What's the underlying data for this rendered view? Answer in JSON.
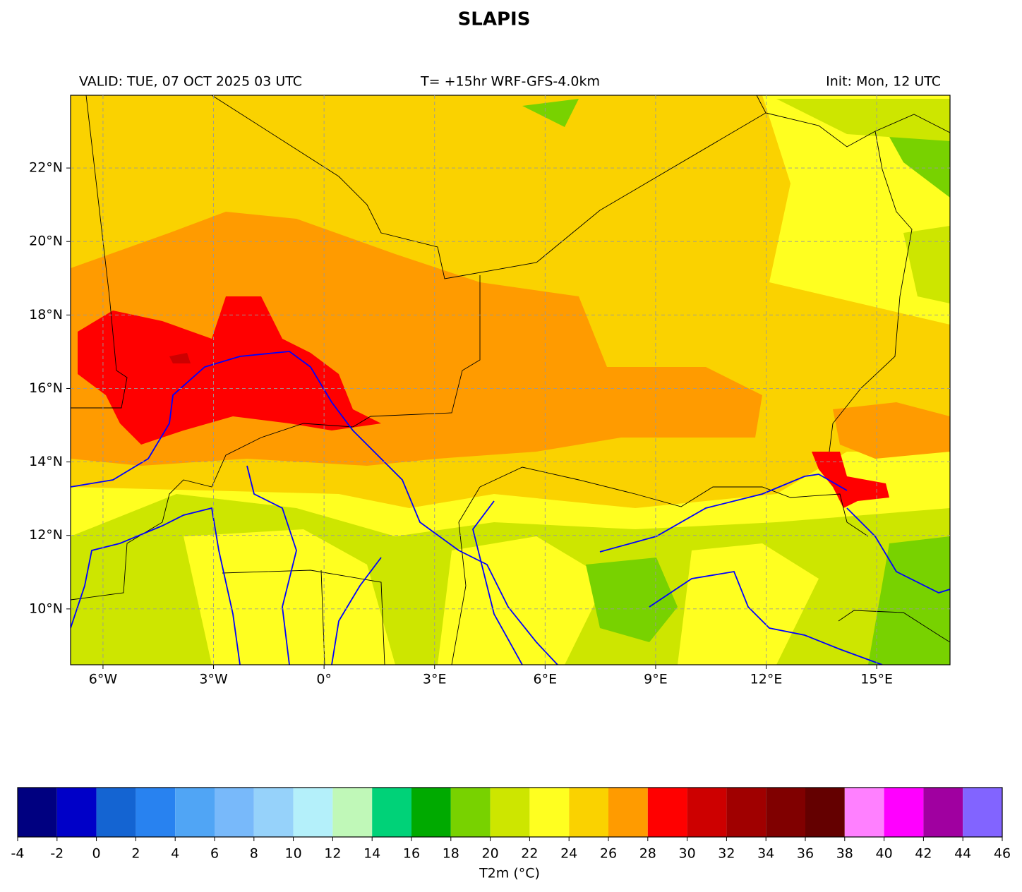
{
  "title": "SLAPIS",
  "header": {
    "left": "VALID: TUE, 07 OCT 2025 03 UTC",
    "center": "T= +15hr WRF-GFS-4.0km",
    "right": "Init: Mon, 12 UTC"
  },
  "map": {
    "xlim": [
      -6.88,
      16.99
    ],
    "ylim": [
      8.48,
      23.98
    ],
    "grid": true,
    "xticks": [
      {
        "value": -6,
        "label": "6°W"
      },
      {
        "value": -3,
        "label": "3°W"
      },
      {
        "value": 0,
        "label": "0°"
      },
      {
        "value": 3,
        "label": "3°E"
      },
      {
        "value": 6,
        "label": "6°E"
      },
      {
        "value": 9,
        "label": "9°E"
      },
      {
        "value": 12,
        "label": "12°E"
      },
      {
        "value": 15,
        "label": "15°E"
      }
    ],
    "yticks": [
      {
        "value": 10,
        "label": "10°N"
      },
      {
        "value": 12,
        "label": "12°N"
      },
      {
        "value": 14,
        "label": "14°N"
      },
      {
        "value": 16,
        "label": "16°N"
      },
      {
        "value": 18,
        "label": "18°N"
      },
      {
        "value": 20,
        "label": "20°N"
      },
      {
        "value": 22,
        "label": "22°N"
      }
    ]
  },
  "colorbar": {
    "label": "T2m (°C)",
    "bounds": [
      -4,
      -2,
      0,
      2,
      4,
      6,
      8,
      10,
      12,
      14,
      16,
      18,
      20,
      22,
      24,
      26,
      28,
      30,
      32,
      34,
      36,
      38,
      40,
      42,
      44,
      46
    ],
    "colors": [
      "#000080",
      "#0000c8",
      "#1464d2",
      "#2882f0",
      "#50a5f5",
      "#78b9fa",
      "#96d2fa",
      "#b4f0fa",
      "#c0f8b8",
      "#00d278",
      "#00aa00",
      "#78d200",
      "#cde600",
      "#ffff20",
      "#fad200",
      "#ff9b00",
      "#ff0000",
      "#cd0000",
      "#a00000",
      "#800000",
      "#640000",
      "#ff80ff",
      "#ff00ff",
      "#a000a0",
      "#8264ff"
    ]
  }
}
